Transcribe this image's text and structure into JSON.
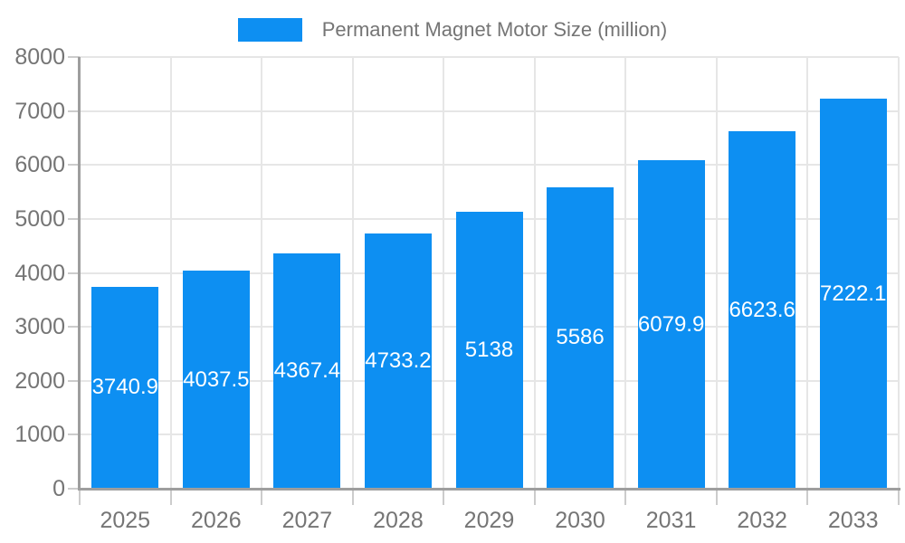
{
  "legend": {
    "label": "Permanent Magnet Motor Size (million)"
  },
  "colors": {
    "bar": "#0d8ff2",
    "axis": "#9e9e9e",
    "grid": "#e6e6e6",
    "tick": "#cccccc",
    "label_text": "#757575",
    "bar_label_text": "#ffffff",
    "background": "#ffffff"
  },
  "chart_data": {
    "type": "bar",
    "title": "Permanent Magnet Motor Size (million)",
    "series_name": "Permanent Magnet Motor Size (million)",
    "categories": [
      "2025",
      "2026",
      "2027",
      "2028",
      "2029",
      "2030",
      "2031",
      "2032",
      "2033"
    ],
    "values": [
      3740.9,
      4037.5,
      4367.4,
      4733.2,
      5138,
      5586,
      6079.9,
      6623.6,
      7222.1
    ],
    "xlabel": "",
    "ylabel": "",
    "ylim": [
      0,
      8000
    ],
    "ytick_step": 1000,
    "ytick_labels": [
      "0",
      "1000",
      "2000",
      "3000",
      "4000",
      "5000",
      "6000",
      "7000",
      "8000"
    ],
    "grid": true,
    "legend_position": "top-center",
    "bar_labels": "inside-center-white"
  }
}
